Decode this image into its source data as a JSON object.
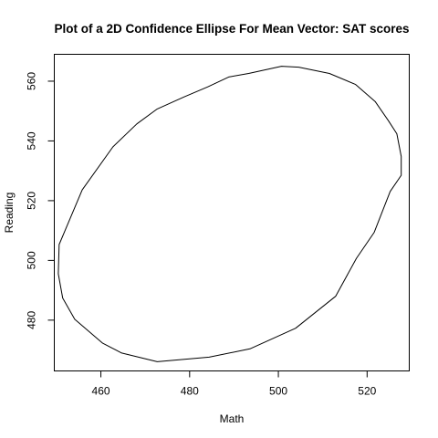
{
  "chart_data": {
    "type": "line",
    "title": "Plot of a 2D Confidence Ellipse For Mean Vector: SAT scores",
    "xlabel": "Math",
    "ylabel": "Reading",
    "xlim": [
      449.5,
      529.5
    ],
    "ylim": [
      463,
      569
    ],
    "x_ticks": [
      460,
      480,
      500,
      520
    ],
    "y_ticks": [
      480,
      500,
      520,
      540,
      560
    ],
    "x_tick_labels": [
      "460",
      "480",
      "500",
      "520"
    ],
    "y_tick_labels": [
      "480",
      "500",
      "520",
      "540",
      "560"
    ],
    "grid": false,
    "legend": "none",
    "series": [
      {
        "closed": true,
        "color": "#000000",
        "points": [
          [
            500.7,
            565.0
          ],
          [
            504.6,
            564.7
          ],
          [
            511.5,
            562.6
          ],
          [
            517.4,
            558.9
          ],
          [
            521.8,
            553.2
          ],
          [
            524.8,
            546.8
          ],
          [
            526.7,
            542.4
          ],
          [
            527.7,
            534.8
          ],
          [
            527.7,
            528.5
          ],
          [
            525.2,
            523.1
          ],
          [
            521.6,
            509.4
          ],
          [
            517.6,
            500.7
          ],
          [
            512.9,
            488.0
          ],
          [
            503.9,
            477.3
          ],
          [
            493.6,
            470.4
          ],
          [
            484.4,
            467.6
          ],
          [
            472.7,
            466.1
          ],
          [
            464.7,
            469.0
          ],
          [
            460.4,
            472.3
          ],
          [
            454.1,
            480.3
          ],
          [
            451.4,
            487.4
          ],
          [
            450.4,
            495.5
          ],
          [
            450.6,
            505.3
          ],
          [
            455.8,
            523.6
          ],
          [
            462.7,
            538.0
          ],
          [
            468.1,
            545.7
          ],
          [
            472.7,
            550.7
          ],
          [
            478.7,
            554.7
          ],
          [
            484.1,
            558.1
          ],
          [
            488.8,
            561.4
          ],
          [
            493.3,
            562.6
          ],
          [
            500.7,
            565.0
          ]
        ]
      }
    ]
  }
}
